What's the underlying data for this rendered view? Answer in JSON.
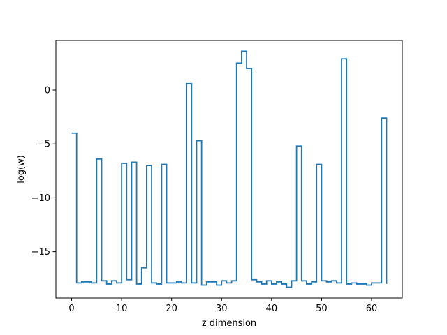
{
  "chart_data": {
    "type": "line",
    "drawstyle": "steps-post",
    "title": "",
    "xlabel": "z dimension",
    "ylabel": "log(w)",
    "xlim": [
      -3.15,
      66.15
    ],
    "ylim": [
      -19.3,
      4.6
    ],
    "xticks": [
      0,
      10,
      20,
      30,
      40,
      50,
      60
    ],
    "yticks": [
      -15,
      -10,
      -5,
      0
    ],
    "grid": false,
    "legend": "none",
    "series": [
      {
        "color": "#1f77b4",
        "x": [
          0,
          1,
          2,
          3,
          4,
          5,
          6,
          7,
          8,
          9,
          10,
          11,
          12,
          13,
          14,
          15,
          16,
          17,
          18,
          19,
          20,
          21,
          22,
          23,
          24,
          25,
          26,
          27,
          28,
          29,
          30,
          31,
          32,
          33,
          34,
          35,
          36,
          37,
          38,
          39,
          40,
          41,
          42,
          43,
          44,
          45,
          46,
          47,
          48,
          49,
          50,
          51,
          52,
          53,
          54,
          55,
          56,
          57,
          58,
          59,
          60,
          61,
          62,
          63
        ],
        "y": [
          -4.0,
          -17.9,
          -17.8,
          -17.8,
          -17.9,
          -6.4,
          -17.7,
          -18.0,
          -17.7,
          -17.9,
          -6.8,
          -17.6,
          -6.7,
          -18.0,
          -16.5,
          -7.0,
          -17.9,
          -18.0,
          -6.9,
          -17.9,
          -17.9,
          -17.8,
          -17.9,
          0.6,
          -17.9,
          -4.7,
          -18.1,
          -17.8,
          -17.8,
          -18.1,
          -17.7,
          -17.9,
          -17.7,
          2.5,
          3.6,
          2.0,
          -17.6,
          -17.8,
          -18.0,
          -17.7,
          -18.0,
          -17.8,
          -18.0,
          -18.3,
          -17.7,
          -5.2,
          -17.7,
          -18.0,
          -17.8,
          -6.9,
          -17.7,
          -17.8,
          -17.7,
          -17.9,
          2.9,
          -18.0,
          -17.9,
          -18.0,
          -18.0,
          -18.1,
          -17.9,
          -17.9,
          -2.6,
          -18.0
        ]
      }
    ]
  }
}
